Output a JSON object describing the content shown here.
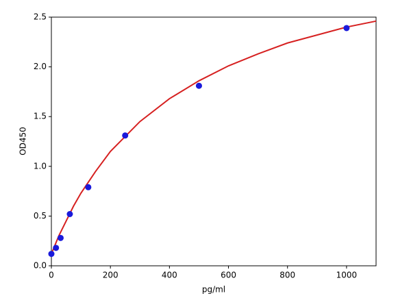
{
  "chart_data": {
    "type": "scatter",
    "x_label": "pg/ml",
    "y_label": "OD450",
    "xlim": [
      0,
      1100
    ],
    "ylim": [
      0,
      2.5
    ],
    "xticks": [
      0,
      200,
      400,
      600,
      800,
      1000
    ],
    "yticks": [
      {
        "value": 0,
        "label": "0.0"
      },
      {
        "value": 0.5,
        "label": "0.5"
      },
      {
        "value": 1,
        "label": "1.0"
      },
      {
        "value": 1.5,
        "label": "1.5"
      },
      {
        "value": 2,
        "label": "2.0"
      },
      {
        "value": 2.5,
        "label": "2.5"
      }
    ],
    "grid": false,
    "series": [
      {
        "type": "line",
        "color": "#d62020",
        "x": [
          0,
          25,
          50,
          75,
          100,
          150,
          200,
          300,
          400,
          500,
          600,
          700,
          800,
          900,
          1000,
          1100
        ],
        "values": [
          0.12,
          0.3,
          0.45,
          0.6,
          0.73,
          0.95,
          1.15,
          1.45,
          1.68,
          1.86,
          2.01,
          2.13,
          2.24,
          2.32,
          2.4,
          2.46
        ]
      },
      {
        "type": "scatter",
        "color": "#1a1adb",
        "x": [
          0,
          15.6,
          31.25,
          62.5,
          125,
          250,
          500,
          1000
        ],
        "values": [
          0.12,
          0.18,
          0.28,
          0.52,
          0.79,
          1.31,
          1.81,
          2.39
        ]
      }
    ]
  }
}
